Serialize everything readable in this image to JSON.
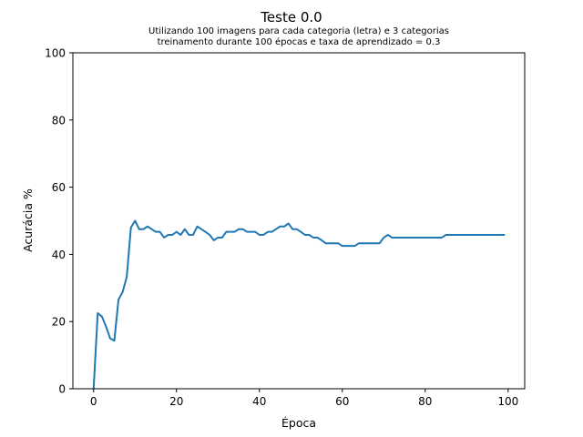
{
  "colors": {
    "series": "#1f77b4",
    "axes": "#000000",
    "background": "#ffffff"
  },
  "chart_data": {
    "type": "line",
    "title": "Teste 0.0",
    "subtitle_lines": [
      "Utilizando 100 imagens para cada categoria (letra) e 3 categorias",
      "treinamento durante 100 épocas e taxa de aprendizado = 0.3"
    ],
    "xlabel": "Época",
    "ylabel": "Acurácia %",
    "xlim": [
      -5,
      104
    ],
    "ylim": [
      0,
      100
    ],
    "xticks": [
      0,
      20,
      40,
      60,
      80,
      100
    ],
    "yticks": [
      0,
      20,
      40,
      60,
      80,
      100
    ],
    "grid": false,
    "series": [
      {
        "x": [
          0,
          1,
          2,
          3,
          4,
          5,
          6,
          7,
          8,
          9,
          10,
          11,
          12,
          13,
          14,
          15,
          16,
          17,
          18,
          19,
          20,
          21,
          22,
          23,
          24,
          25,
          26,
          27,
          28,
          29,
          30,
          31,
          32,
          33,
          34,
          35,
          36,
          37,
          38,
          39,
          40,
          41,
          42,
          43,
          44,
          45,
          46,
          47,
          48,
          49,
          50,
          51,
          52,
          53,
          54,
          55,
          56,
          57,
          58,
          59,
          60,
          61,
          62,
          63,
          64,
          65,
          66,
          67,
          68,
          69,
          70,
          71,
          72,
          73,
          74,
          75,
          76,
          77,
          78,
          79,
          80,
          81,
          82,
          83,
          84,
          85,
          86,
          87,
          88,
          89,
          90,
          91,
          92,
          93,
          94,
          95,
          96,
          97,
          98,
          99
        ],
        "y": [
          0,
          22.5,
          21.5,
          18.5,
          15,
          14.3,
          26.5,
          28.8,
          33.3,
          48,
          50,
          47.5,
          47.5,
          48.3,
          47.5,
          46.7,
          46.7,
          45,
          45.8,
          45.8,
          46.7,
          45.8,
          47.5,
          45.8,
          45.8,
          48.3,
          47.5,
          46.7,
          45.8,
          44.2,
          45,
          45,
          46.7,
          46.7,
          46.7,
          47.5,
          47.5,
          46.7,
          46.7,
          46.7,
          45.8,
          45.8,
          46.7,
          46.7,
          47.5,
          48.3,
          48.3,
          49.2,
          47.5,
          47.5,
          46.7,
          45.8,
          45.8,
          45,
          45,
          44.2,
          43.3,
          43.3,
          43.3,
          43.3,
          42.5,
          42.5,
          42.5,
          42.5,
          43.3,
          43.3,
          43.3,
          43.3,
          43.3,
          43.3,
          45,
          45.8,
          45,
          45,
          45,
          45,
          45,
          45,
          45,
          45,
          45,
          45,
          45,
          45,
          45,
          45.8,
          45.8,
          45.8,
          45.8,
          45.8,
          45.8,
          45.8,
          45.8,
          45.8,
          45.8,
          45.8,
          45.8,
          45.8,
          45.8,
          45.8
        ]
      }
    ]
  }
}
